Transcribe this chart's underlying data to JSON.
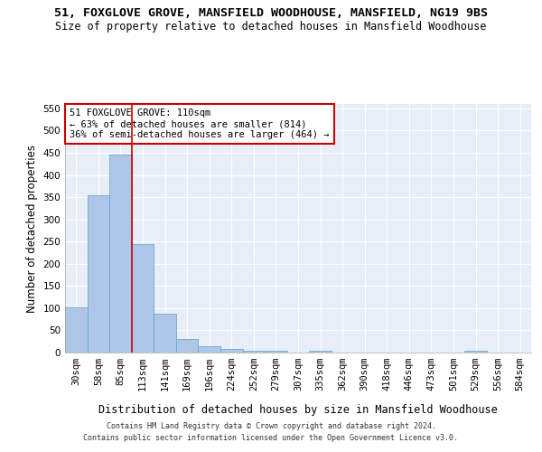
{
  "title1": "51, FOXGLOVE GROVE, MANSFIELD WOODHOUSE, MANSFIELD, NG19 9BS",
  "title2": "Size of property relative to detached houses in Mansfield Woodhouse",
  "xlabel": "Distribution of detached houses by size in Mansfield Woodhouse",
  "ylabel": "Number of detached properties",
  "footnote1": "Contains HM Land Registry data © Crown copyright and database right 2024.",
  "footnote2": "Contains public sector information licensed under the Open Government Licence v3.0.",
  "bin_labels": [
    "30sqm",
    "58sqm",
    "85sqm",
    "113sqm",
    "141sqm",
    "169sqm",
    "196sqm",
    "224sqm",
    "252sqm",
    "279sqm",
    "307sqm",
    "335sqm",
    "362sqm",
    "390sqm",
    "418sqm",
    "446sqm",
    "473sqm",
    "501sqm",
    "529sqm",
    "556sqm",
    "584sqm"
  ],
  "bin_values": [
    102,
    355,
    445,
    245,
    88,
    30,
    14,
    9,
    5,
    5,
    0,
    5,
    0,
    0,
    0,
    0,
    0,
    0,
    5,
    0,
    0
  ],
  "bar_color": "#aec6e8",
  "bar_edge_color": "#5a9fc8",
  "bar_width": 1.0,
  "property_line_color": "#cc0000",
  "annotation_text": "51 FOXGLOVE GROVE: 110sqm\n← 63% of detached houses are smaller (814)\n36% of semi-detached houses are larger (464) →",
  "annotation_box_color": "#ffffff",
  "annotation_box_edge_color": "#cc0000",
  "ylim": [
    0,
    560
  ],
  "yticks": [
    0,
    50,
    100,
    150,
    200,
    250,
    300,
    350,
    400,
    450,
    500,
    550
  ],
  "background_color": "#e8eef8",
  "title1_fontsize": 9.5,
  "title2_fontsize": 8.5,
  "xlabel_fontsize": 8.5,
  "ylabel_fontsize": 8.5,
  "tick_fontsize": 7.5,
  "annotation_fontsize": 7.5,
  "footnote_fontsize": 6.0
}
